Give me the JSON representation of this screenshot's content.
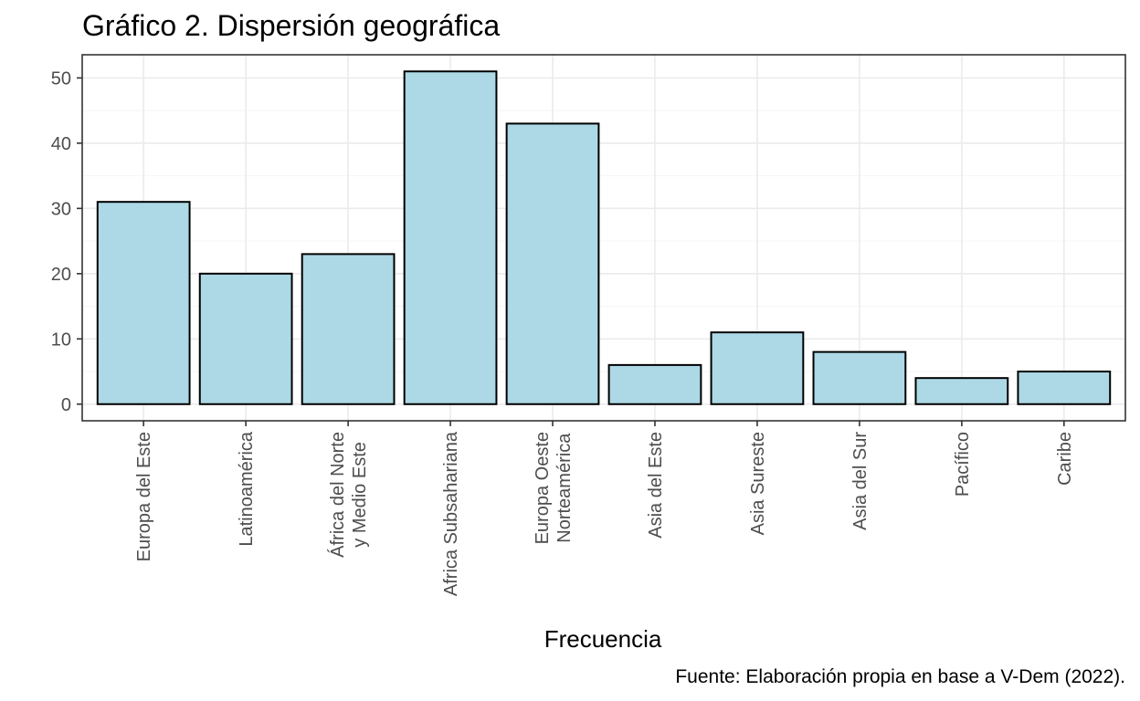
{
  "chart_data": {
    "type": "bar",
    "title": "Gráfico 2. Dispersión geográfica",
    "xlabel": "Frecuencia",
    "ylabel": "",
    "caption": "Fuente: Elaboración propia en base a V-Dem (2022).",
    "categories": [
      "Europa del Este",
      "Latinoamérica",
      "África del Norte\ny Medio Este",
      "Africa Subsahariana",
      "Europa Oeste\nNorteamérica",
      "Asia del Este",
      "Asia Sureste",
      "Asia del Sur",
      "Pacífico",
      "Caribe"
    ],
    "values": [
      31,
      20,
      23,
      51,
      43,
      6,
      11,
      8,
      4,
      5
    ],
    "ylim": [
      -2.55,
      53.55
    ],
    "yticks": [
      0,
      10,
      20,
      30,
      40,
      50
    ],
    "grid": true,
    "legend": "none"
  },
  "colors": {
    "bar_fill": "#add8e6",
    "bar_stroke": "#000000",
    "grid_major": "#ebebeb",
    "grid_minor": "#f5f5f5",
    "panel_border": "#333333",
    "tick_text": "#4d4d4d"
  }
}
